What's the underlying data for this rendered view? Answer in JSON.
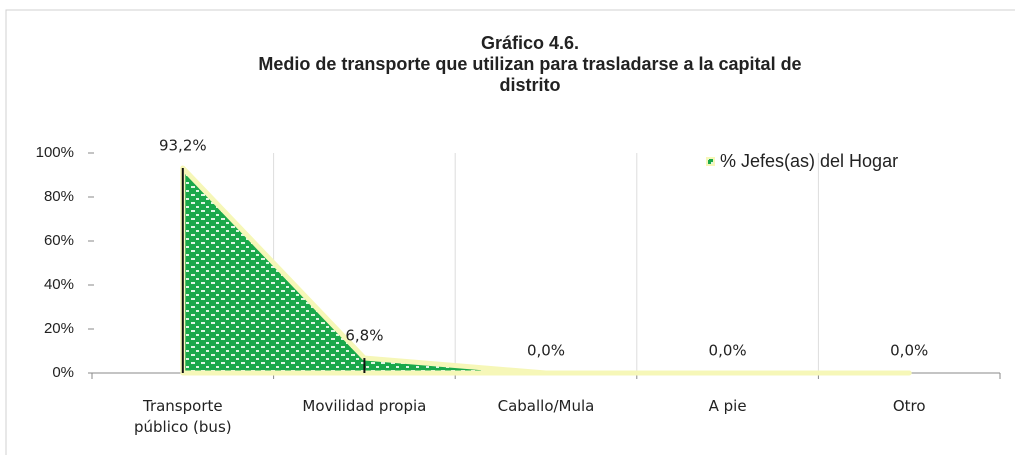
{
  "chart_data": {
    "type": "area",
    "title": [
      "Gráfico 4.6.",
      "Medio de transporte que utilizan para trasladarse a la capital de",
      "distrito"
    ],
    "categories": [
      "Transporte público (bus)",
      "Movilidad propia",
      "Caballo/Mula",
      "A pie",
      "Otro"
    ],
    "series": [
      {
        "name": "% Jefes(as) del Hogar",
        "color": "#1aa84a",
        "values": [
          93.2,
          6.8,
          0,
          0,
          0
        ],
        "value_labels": [
          "93,2%",
          "6,8%",
          "0,0%",
          "0,0%",
          "0,0%"
        ]
      }
    ],
    "ylim": [
      0,
      100
    ],
    "yticks": [
      {
        "value": 0,
        "label": "0%"
      },
      {
        "value": 20,
        "label": "20%"
      },
      {
        "value": 40,
        "label": "40%"
      },
      {
        "value": 60,
        "label": "60%"
      },
      {
        "value": 80,
        "label": "80%"
      },
      {
        "value": 100,
        "label": "100%"
      }
    ],
    "legend": "top-right"
  }
}
